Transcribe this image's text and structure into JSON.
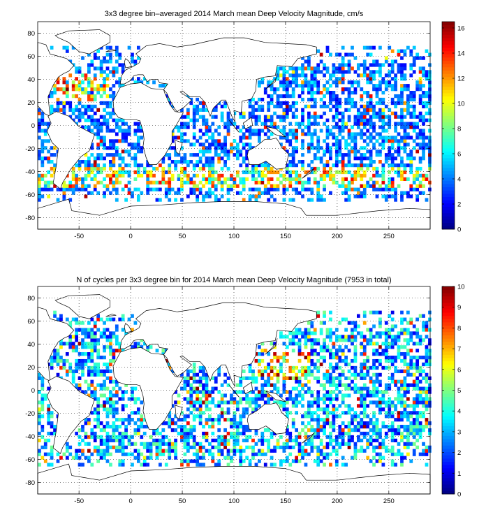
{
  "chart_data": [
    {
      "type": "heatmap",
      "title": "3x3 degree bin–averaged 2014 March mean Deep Velocity Magnitude, cm/s",
      "xlabel": "",
      "ylabel": "",
      "xlim": [
        -90,
        290
      ],
      "ylim": [
        -90,
        90
      ],
      "xticks": [
        -50,
        0,
        50,
        100,
        150,
        200,
        250
      ],
      "yticks": [
        -80,
        -60,
        -40,
        -20,
        0,
        20,
        40,
        60,
        80
      ],
      "grid": true,
      "colorbar": {
        "min": 0,
        "max": 16.5,
        "ticks": [
          0,
          2,
          4,
          6,
          8,
          10,
          12,
          14,
          16
        ],
        "colormap": "jet"
      },
      "bin_size_deg": 3,
      "seed": 11,
      "field": "velocity"
    },
    {
      "type": "heatmap",
      "title": "N of cycles per 3x3 degree bin for 2014 March mean Deep Velocity Magnitude (7953 in total)",
      "xlabel": "",
      "ylabel": "",
      "xlim": [
        -90,
        290
      ],
      "ylim": [
        -90,
        90
      ],
      "xticks": [
        -50,
        0,
        50,
        100,
        150,
        200,
        250
      ],
      "yticks": [
        -80,
        -60,
        -40,
        -20,
        0,
        20,
        40,
        60,
        80
      ],
      "grid": true,
      "colorbar": {
        "min": 0,
        "max": 10,
        "ticks": [
          0,
          1,
          2,
          3,
          4,
          5,
          6,
          7,
          8,
          9,
          10
        ],
        "colormap": "jet"
      },
      "bin_size_deg": 3,
      "seed": 29,
      "field": "count"
    }
  ],
  "coastline_color": "#000000",
  "grid_color": "#000000"
}
